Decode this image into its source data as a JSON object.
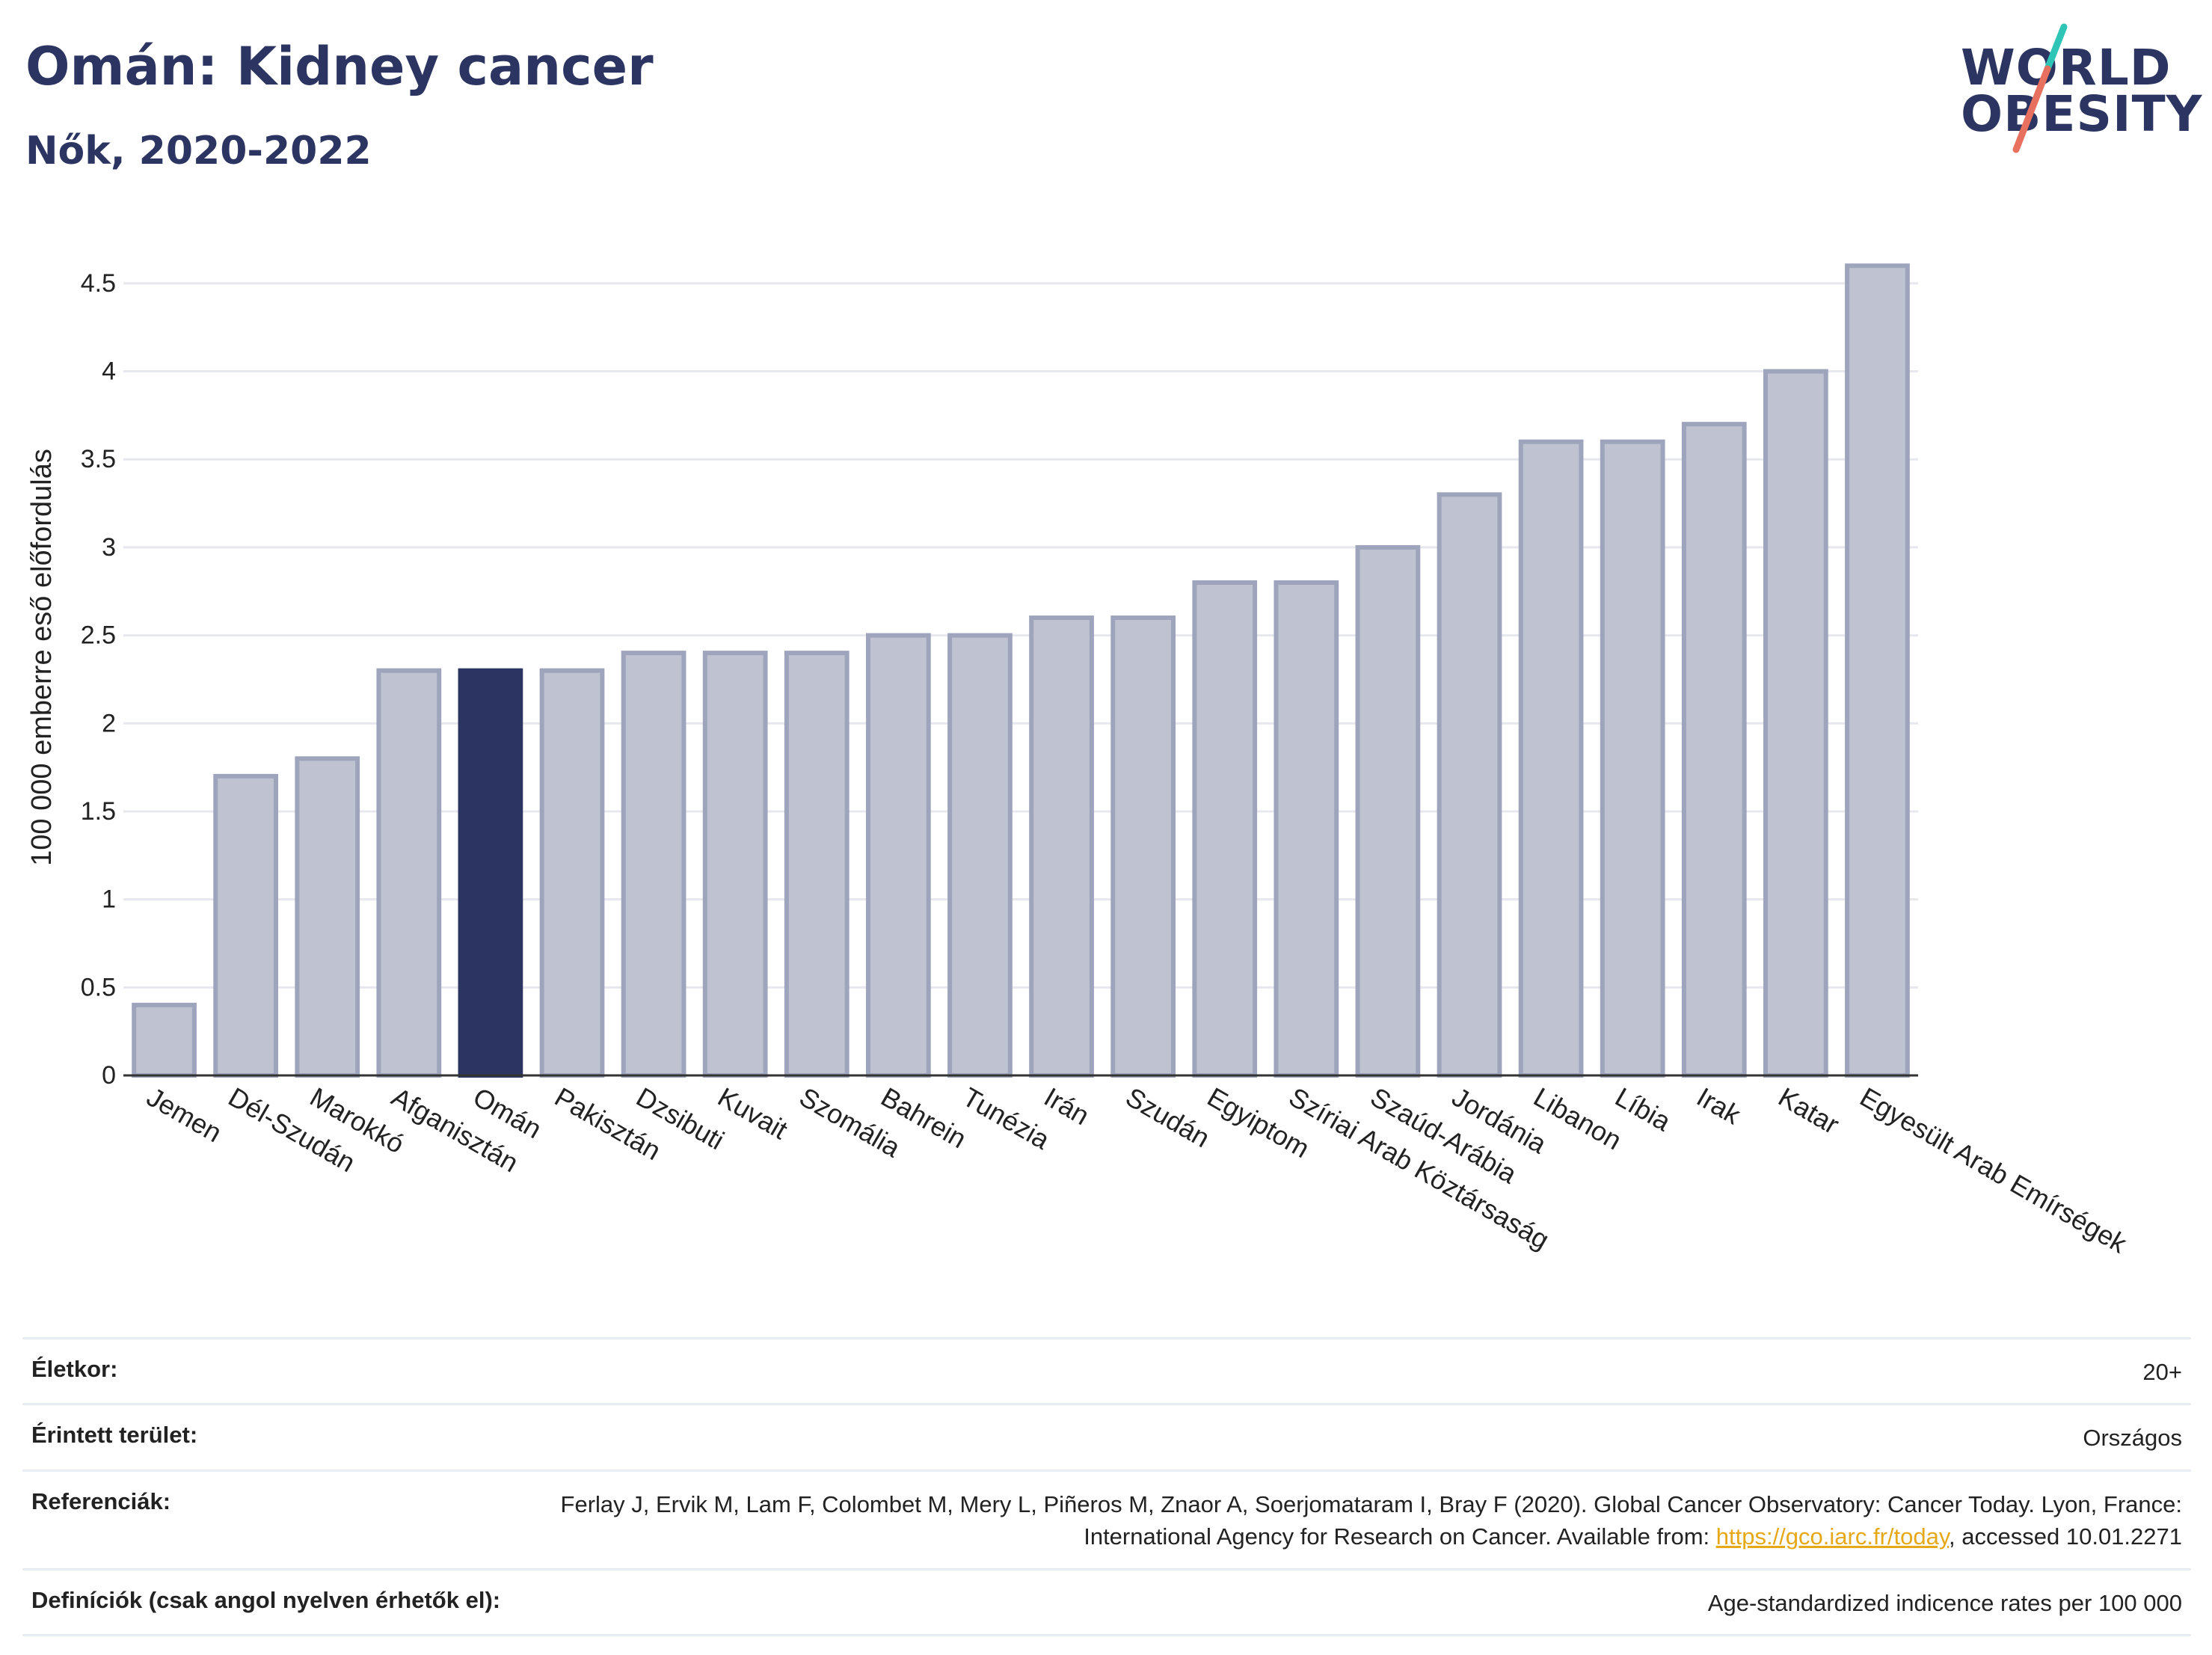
{
  "header": {
    "title": "Omán: Kidney cancer",
    "subtitle": "Nők, 2020-2022"
  },
  "logo": {
    "line1": "WORLD",
    "line2": "OBESITY",
    "slash_colors": [
      "#2ec4b6",
      "#e8705f"
    ]
  },
  "chart_data": {
    "type": "bar",
    "ylabel": "100 000 emberre eső előfordulás",
    "xlabel": "",
    "ylim": [
      0,
      4.75
    ],
    "yticks": [
      0,
      0.5,
      1,
      1.5,
      2,
      2.5,
      3,
      3.5,
      4,
      4.5
    ],
    "ytick_labels": [
      "0",
      "0.5",
      "1",
      "1.5",
      "2",
      "2.5",
      "3",
      "3.5",
      "4",
      "4.5"
    ],
    "grid": true,
    "highlight": "Omán",
    "highlight_color": "#2c3561",
    "bar_color": "#bfc3d1",
    "bar_edge_color": "#9ea4bb",
    "categories": [
      "Jemen",
      "Dél-Szudán",
      "Marokkó",
      "Afganisztán",
      "Omán",
      "Pakisztán",
      "Dzsibuti",
      "Kuvait",
      "Szomália",
      "Bahrein",
      "Tunézia",
      "Irán",
      "Szudán",
      "Egyiptom",
      "Szíriai Arab Köztársaság",
      "Szaúd-Arábia",
      "Jordánia",
      "Libanon",
      "Líbia",
      "Irak",
      "Katar",
      "Egyesült Arab Emírségek"
    ],
    "values": [
      0.4,
      1.7,
      1.8,
      2.3,
      2.3,
      2.3,
      2.4,
      2.4,
      2.4,
      2.5,
      2.5,
      2.6,
      2.6,
      2.8,
      2.8,
      3.0,
      3.3,
      3.6,
      3.6,
      3.7,
      4.0,
      4.6
    ]
  },
  "meta": {
    "age_label": "Életkor:",
    "age_value": "20+",
    "area_label": "Érintett terület:",
    "area_value": "Országos",
    "ref_label": "Referenciák:",
    "ref_text_1": "Ferlay J, Ervik M, Lam F, Colombet M, Mery L, Piñeros M, Znaor A, Soerjomataram I, Bray F (2020). Global Cancer Observatory: Cancer Today. Lyon, France: International Agency for Research on Cancer. Available from: ",
    "ref_link": "https://gco.iarc.fr/today",
    "ref_text_2": ", accessed 10.01.2271",
    "def_label": "Definíciók (csak angol nyelven érhetők el):",
    "def_value": "Age-standardized indicence rates per 100 000"
  }
}
